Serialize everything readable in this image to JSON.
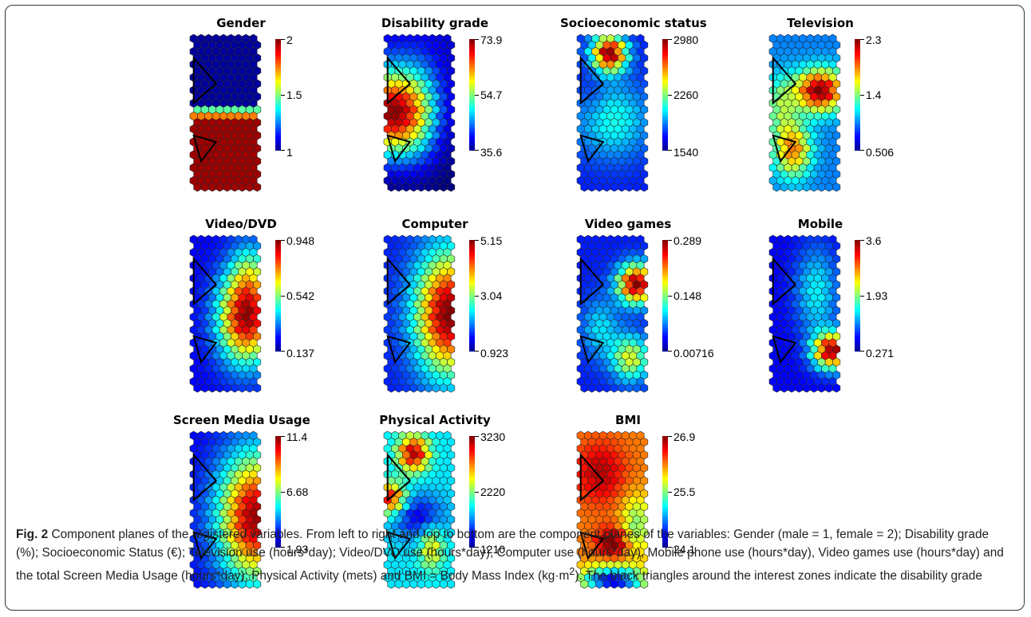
{
  "figure": {
    "label": "Fig. 2",
    "caption_part1": "Component planes of the registered variables. From left to right and top to bottom are the component planes of the variables: Gender (male = 1, female = 2); Disability grade (%); Socioeconomic Status (€); Television use (hours*day); Video/DVD use (hours*day), Computer use (hours*day), Mobile phone use (hours*day), Video games use (hours*day) and the total Screen Media Usage (hours*day); Physical Activity (mets) and BMI = Body Mass Index (kg·m",
    "caption_sup": "2",
    "caption_part2": "). The black triangles around the interest zones indicate the disability grade"
  },
  "colormap": "jet",
  "panels": [
    {
      "title": "Gender",
      "max": "2",
      "mid": "1.5",
      "min": "1",
      "pattern": "gender"
    },
    {
      "title": "Disability grade",
      "max": "73.9",
      "mid": "54.7",
      "min": "35.6",
      "pattern": "disability"
    },
    {
      "title": "Socioeconomic status",
      "max": "2980",
      "mid": "2260",
      "min": "1540",
      "pattern": "socio"
    },
    {
      "title": "Television",
      "max": "2.3",
      "mid": "1.4",
      "min": "0.506",
      "pattern": "tv"
    },
    {
      "title": "Video/DVD",
      "max": "0.948",
      "mid": "0.542",
      "min": "0.137",
      "pattern": "video"
    },
    {
      "title": "Computer",
      "max": "5.15",
      "mid": "3.04",
      "min": "0.923",
      "pattern": "computer"
    },
    {
      "title": "Video games",
      "max": "0.289",
      "mid": "0.148",
      "min": "0.00716",
      "pattern": "games"
    },
    {
      "title": "Mobile",
      "max": "3.6",
      "mid": "1.93",
      "min": "0.271",
      "pattern": "mobile"
    },
    {
      "title": "Screen Media Usage",
      "max": "11.4",
      "mid": "6.68",
      "min": "1.93",
      "pattern": "screen"
    },
    {
      "title": "Physical Activity",
      "max": "3230",
      "mid": "2220",
      "min": "1210",
      "pattern": "pa"
    },
    {
      "title": "BMI",
      "max": "26.9",
      "mid": "25.5",
      "min": "24.1",
      "pattern": "bmi"
    }
  ]
}
